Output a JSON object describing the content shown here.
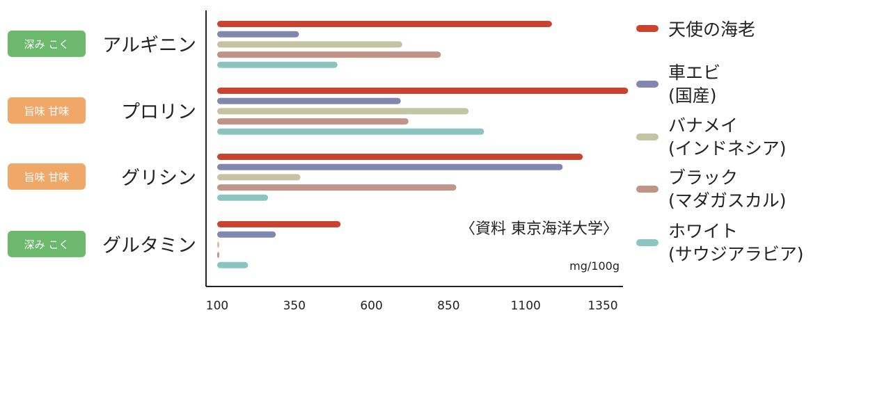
{
  "chart_data": {
    "type": "bar",
    "orientation": "horizontal",
    "title": "",
    "xlabel": "",
    "ylabel": "",
    "unit": "mg/100g",
    "source_note": "〈資料 東京海洋大学〉",
    "xlim": [
      100,
      1400
    ],
    "x_ticks": [
      "100",
      "350",
      "600",
      "850",
      "1100",
      "1350"
    ],
    "categories": [
      "アルギニン",
      "プロリン",
      "グリシン",
      "グルタミン"
    ],
    "category_tags": [
      {
        "text": "深み こく",
        "color": "#6cb86c"
      },
      {
        "text": "旨味 甘味",
        "color": "#f0a868"
      },
      {
        "text": "旨味 甘味",
        "color": "#f0a868"
      },
      {
        "text": "深み こく",
        "color": "#6cb86c"
      }
    ],
    "series": [
      {
        "name_lines": [
          "天使の海老"
        ],
        "color": "#c9442e",
        "values": [
          1185,
          1432,
          1285,
          500
        ]
      },
      {
        "name_lines": [
          "車エビ",
          "(国産)"
        ],
        "color": "#8088b0",
        "values": [
          365,
          695,
          1220,
          290
        ]
      },
      {
        "name_lines": [
          "バナメイ",
          "(インドネシア)"
        ],
        "color": "#c4c4a4",
        "values": [
          700,
          915,
          370,
          105
        ]
      },
      {
        "name_lines": [
          "ブラック",
          "(マダガスカル)"
        ],
        "color": "#c09488",
        "values": [
          825,
          720,
          875,
          100
        ]
      },
      {
        "name_lines": [
          "ホワイト",
          "(サウジアラビア)"
        ],
        "color": "#8cc4c0",
        "values": [
          490,
          965,
          265,
          200
        ]
      }
    ],
    "legend_position": "right",
    "grid": false
  }
}
